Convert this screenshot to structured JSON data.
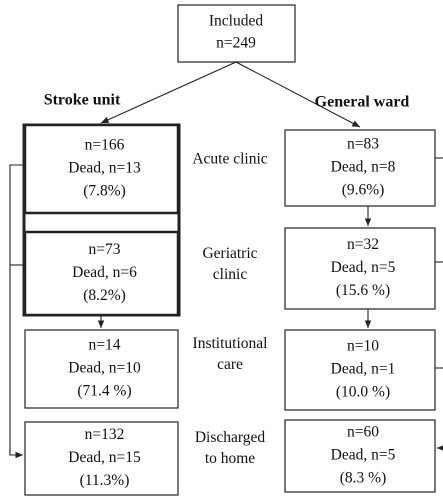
{
  "top": {
    "lines": [
      "Included",
      "n=249"
    ]
  },
  "columns": [
    {
      "title": "Stroke unit",
      "boxes": [
        {
          "lines": [
            "n=166",
            "Dead, n=13",
            "(7.8%)"
          ]
        },
        {
          "lines": [
            "n=73",
            "Dead, n=6",
            "(8.2%)"
          ]
        },
        {
          "lines": [
            "n=14",
            "Dead, n=10",
            "(71.4 %)"
          ]
        },
        {
          "lines": [
            "n=132",
            "Dead, n=15",
            "(11.3%)"
          ]
        }
      ]
    },
    {
      "title": "General ward",
      "boxes": [
        {
          "lines": [
            "n=83",
            "Dead, n=8",
            "(9.6%)"
          ]
        },
        {
          "lines": [
            "n=32",
            "Dead, n=5",
            "(15.6 %)"
          ]
        },
        {
          "lines": [
            "n=10",
            "Dead, n=1",
            "(10.0 %)"
          ]
        },
        {
          "lines": [
            "n=60",
            "Dead, n=5",
            "(8.3 %)"
          ]
        }
      ]
    }
  ],
  "stages": [
    {
      "lines": [
        "Acute clinic"
      ]
    },
    {
      "lines": [
        "Geriatric",
        "clinic"
      ]
    },
    {
      "lines": [
        "Institutional",
        "care"
      ]
    },
    {
      "lines": [
        "Discharged",
        "to home"
      ]
    }
  ]
}
